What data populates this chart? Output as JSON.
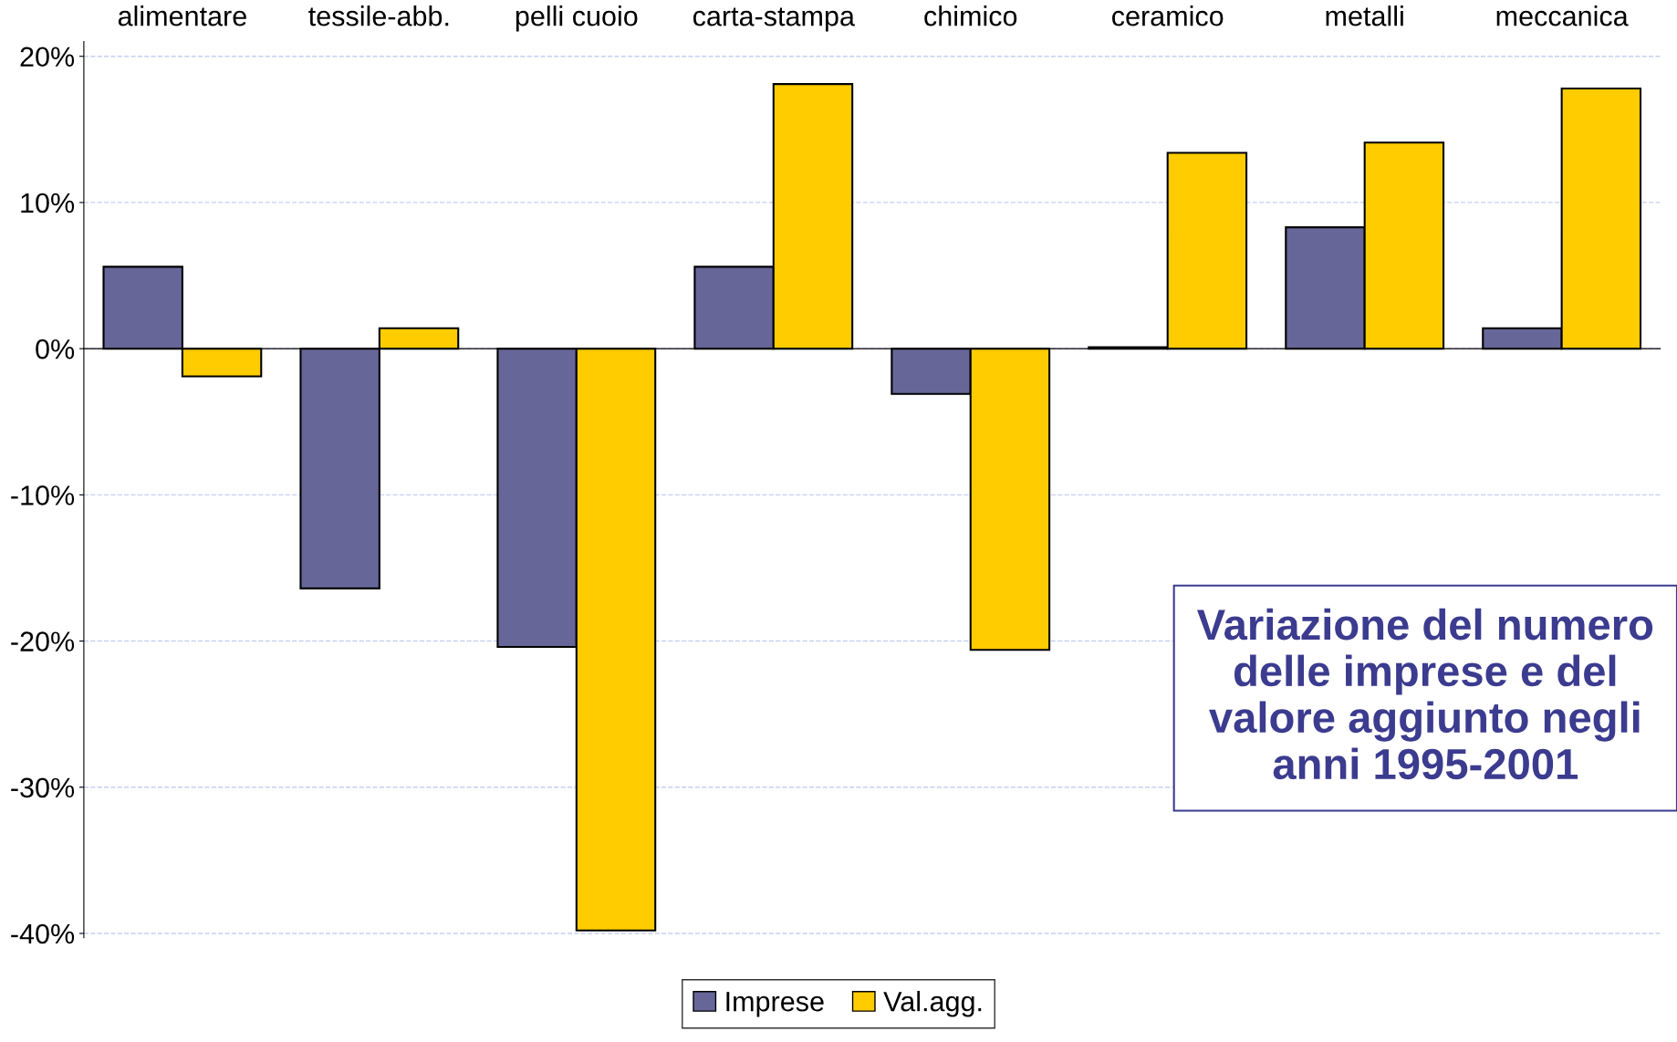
{
  "chart_data": {
    "type": "bar",
    "title": "Variazione del numero delle imprese e del valore aggiunto negli anni 1995-2001",
    "categories": [
      "alimentare",
      "tessile-abb.",
      "pelli cuoio",
      "carta-stampa",
      "chimico",
      "ceramico",
      "metalli",
      "meccanica"
    ],
    "series": [
      {
        "name": "Imprese",
        "color": "#666699",
        "values": [
          5.6,
          -16.4,
          -20.4,
          5.6,
          -3.1,
          0.1,
          8.3,
          1.4
        ]
      },
      {
        "name": "Val.agg.",
        "color": "#ffcc00",
        "values": [
          -1.9,
          1.4,
          -39.8,
          18.1,
          -20.6,
          13.4,
          14.1,
          17.8
        ]
      }
    ],
    "ylim": [
      -40.3,
      21
    ],
    "yticks": [
      {
        "value": -40,
        "label": "-40%"
      },
      {
        "value": -30,
        "label": "-30%"
      },
      {
        "value": -20,
        "label": "-20%"
      },
      {
        "value": -10,
        "label": "-10%"
      },
      {
        "value": 0,
        "label": "0%"
      },
      {
        "value": 10,
        "label": "10%"
      },
      {
        "value": 20,
        "label": "20%"
      }
    ],
    "grid": "y",
    "legend": "bottom"
  }
}
